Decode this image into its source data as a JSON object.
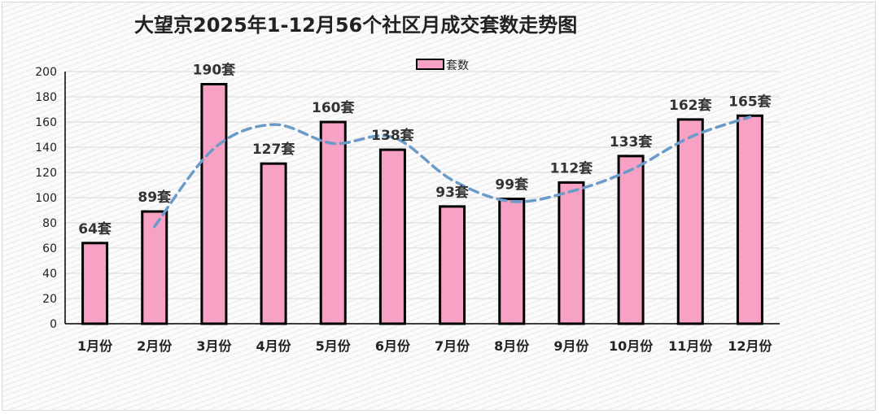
{
  "chart_data": {
    "type": "bar",
    "title": "大望京2025年1-12月56个社区月成交套数走势图",
    "categories": [
      "1月份",
      "2月份",
      "3月份",
      "4月份",
      "5月份",
      "6月份",
      "7月份",
      "8月份",
      "9月份",
      "10月份",
      "11月份",
      "12月份"
    ],
    "series": [
      {
        "name": "套数",
        "values": [
          64,
          89,
          190,
          127,
          160,
          138,
          93,
          99,
          112,
          133,
          162,
          165
        ],
        "data_labels": [
          "64套",
          "89套",
          "190套",
          "127套",
          "160套",
          "138套",
          "93套",
          "99套",
          "112套",
          "133套",
          "162套",
          "165套"
        ],
        "color": "#f7a1c4"
      }
    ],
    "trendline": {
      "style": "dashed",
      "color": "#6b9bc8",
      "points": [
        {
          "category": "2月份",
          "value": 77
        },
        {
          "category": "3月份",
          "value": 139
        },
        {
          "category": "4月份",
          "value": 158
        },
        {
          "category": "5月份",
          "value": 143
        },
        {
          "category": "6月份",
          "value": 148
        },
        {
          "category": "7月份",
          "value": 114
        },
        {
          "category": "8月份",
          "value": 97
        },
        {
          "category": "9月份",
          "value": 105
        },
        {
          "category": "10月份",
          "value": 122
        },
        {
          "category": "11月份",
          "value": 148
        },
        {
          "category": "12月份",
          "value": 164
        }
      ]
    },
    "ylim": [
      0,
      200
    ],
    "yticks": [
      0,
      20,
      40,
      60,
      80,
      100,
      120,
      140,
      160,
      180,
      200
    ],
    "grid": true,
    "legend": "top-center",
    "xlabel": "",
    "ylabel": ""
  },
  "colors": {
    "bar_fill": "#f7a1c4",
    "bar_stroke": "#000000",
    "trend": "#6b9bc8",
    "grid": "#d9d9d9"
  }
}
